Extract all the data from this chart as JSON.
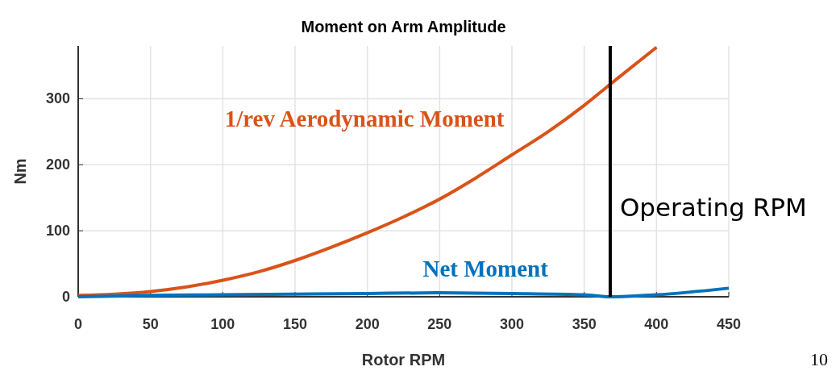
{
  "chart_data": {
    "type": "line",
    "title": "Moment on Arm Amplitude",
    "xlabel": "Rotor RPM",
    "ylabel": "Nm",
    "xlim": [
      0,
      450
    ],
    "xticks": [
      0,
      50,
      100,
      150,
      200,
      250,
      300,
      350,
      400,
      450
    ],
    "ylim": [
      0,
      380
    ],
    "yticks": [
      0,
      100,
      200,
      300
    ],
    "grid": true,
    "series": [
      {
        "name": "1/rev Aerodynamic Moment",
        "color": "#d95319",
        "x": [
          0,
          25,
          50,
          75,
          100,
          125,
          150,
          175,
          200,
          225,
          250,
          275,
          300,
          325,
          350,
          368,
          400
        ],
        "values": [
          2,
          4,
          8,
          15,
          25,
          38,
          55,
          75,
          97,
          121,
          148,
          180,
          215,
          250,
          290,
          322,
          378
        ]
      },
      {
        "name": "Net Moment",
        "color": "#0072bd",
        "x": [
          0,
          50,
          100,
          150,
          200,
          250,
          300,
          350,
          368,
          400,
          450
        ],
        "values": [
          0,
          2,
          3,
          4,
          5,
          6,
          5,
          3,
          0,
          3,
          13
        ]
      }
    ],
    "ref_lines": [
      {
        "axis": "x",
        "value": 368,
        "label": "Operating RPM",
        "color": "#000000"
      }
    ],
    "annotations": [
      "10"
    ]
  }
}
